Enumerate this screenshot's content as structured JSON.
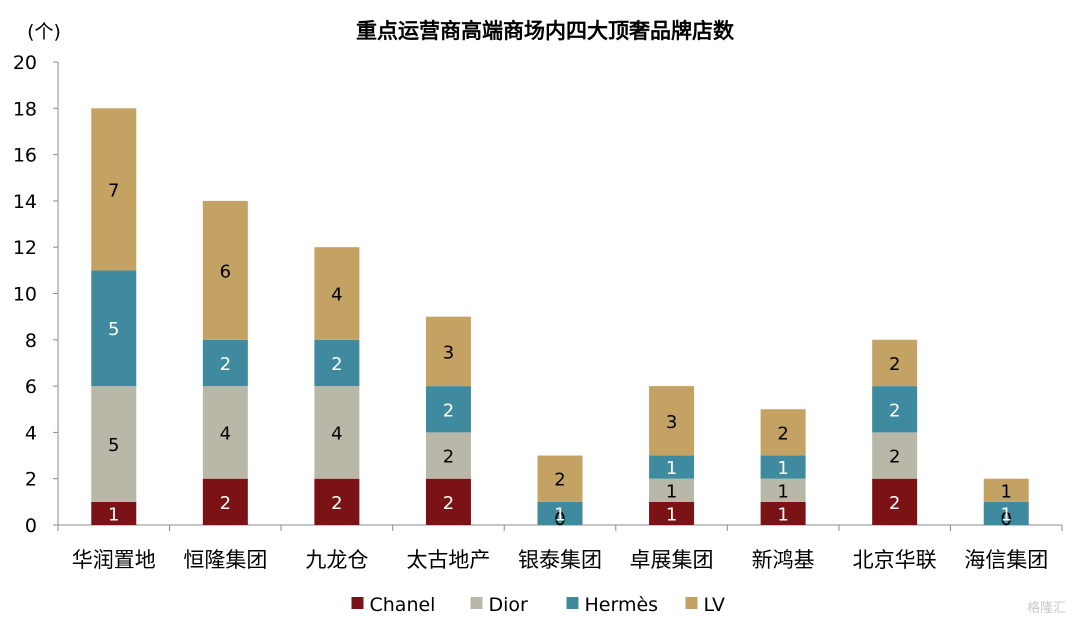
{
  "chart_data": {
    "type": "bar",
    "stacked": true,
    "title": "重点运营商高端商场内四大顶奢品牌店数",
    "unit_label": "(个)",
    "xlabel": "",
    "ylabel": "",
    "ylim": [
      0,
      20
    ],
    "yticks": [
      0,
      2,
      4,
      6,
      8,
      10,
      12,
      14,
      16,
      18,
      20
    ],
    "grid": false,
    "legend_position": "bottom",
    "categories": [
      "华润置地",
      "恒隆集团",
      "九龙仓",
      "太古地产",
      "银泰集团",
      "卓展集团",
      "新鸿基",
      "北京华联",
      "海信集团"
    ],
    "series": [
      {
        "name": "Chanel",
        "color": "#7b1216",
        "values": [
          1,
          2,
          2,
          2,
          0,
          1,
          1,
          2,
          0
        ]
      },
      {
        "name": "Dior",
        "color": "#b9b8a8",
        "values": [
          5,
          4,
          4,
          2,
          0,
          1,
          1,
          2,
          0
        ]
      },
      {
        "name": "Hermès",
        "color": "#3f8a9e",
        "values": [
          5,
          2,
          2,
          2,
          1,
          1,
          1,
          2,
          1
        ]
      },
      {
        "name": "LV",
        "color": "#c3a264",
        "values": [
          7,
          6,
          4,
          3,
          2,
          3,
          2,
          2,
          1
        ]
      }
    ]
  },
  "watermark": "格隆汇"
}
